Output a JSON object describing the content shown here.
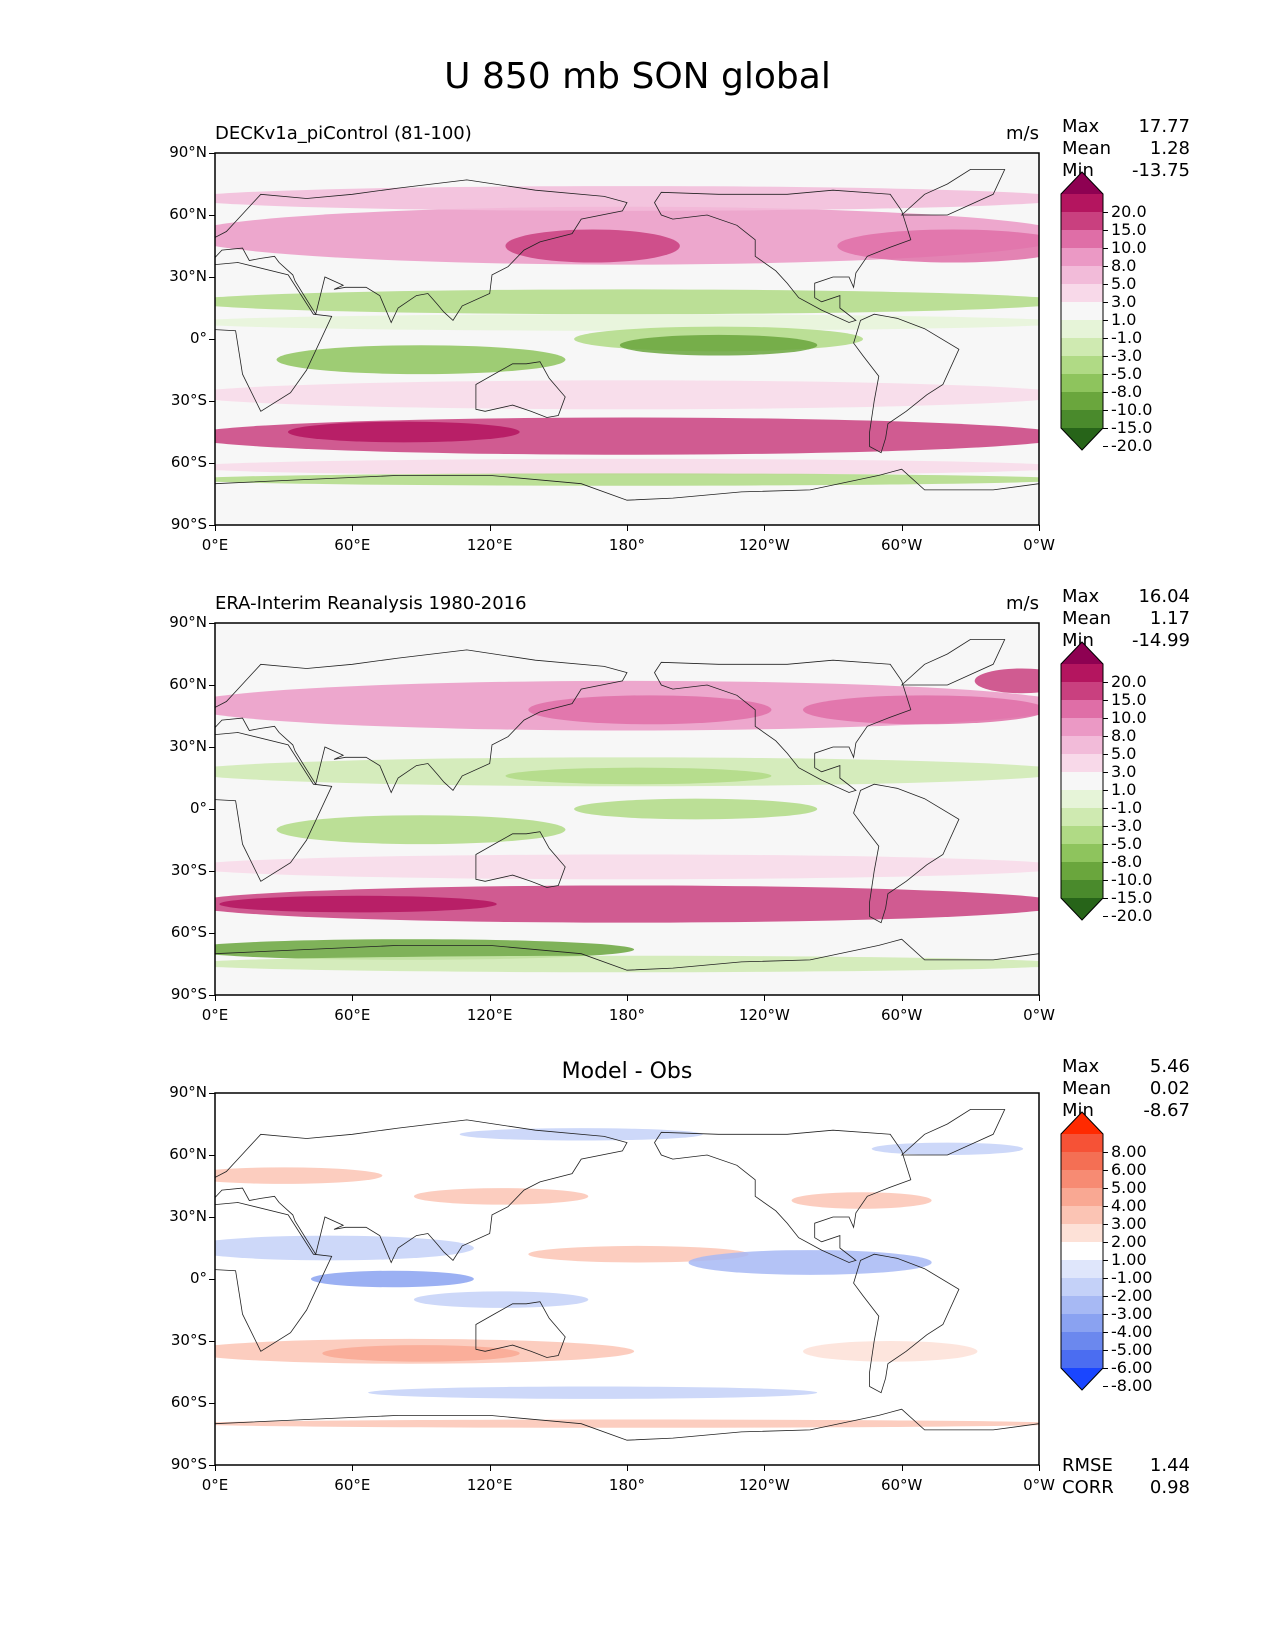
{
  "figure": {
    "title": "U 850 mb SON global"
  },
  "axes": {
    "lat_ticks": [
      "90°N",
      "60°N",
      "30°N",
      "0°",
      "30°S",
      "60°S",
      "90°S"
    ],
    "lon_ticks": [
      "0°E",
      "60°E",
      "120°E",
      "180°",
      "120°W",
      "60°W",
      "0°W"
    ]
  },
  "panels": [
    {
      "title": "DECKv1a_piControl (81-100)",
      "units": "m/s",
      "stats": {
        "max_label": "Max",
        "max": "17.77",
        "mean_label": "Mean",
        "mean": "1.28",
        "min_label": "Min",
        "min": "-13.75"
      },
      "colorbar": {
        "labels": [
          "20.0",
          "15.0",
          "10.0",
          "8.0",
          "5.0",
          "3.0",
          "1.0",
          "-1.0",
          "-3.0",
          "-5.0",
          "-8.0",
          "-10.0",
          "-15.0",
          "-20.0"
        ],
        "colors": [
          "#8e0152",
          "#b4155f",
          "#c9407f",
          "#df6ea7",
          "#eb99c5",
          "#f2bbd9",
          "#f8d9e9",
          "#f7f7f7",
          "#e6f4d8",
          "#cfeab1",
          "#b0da85",
          "#8ec45d",
          "#6aa63d",
          "#4a8a2c",
          "#276419"
        ]
      }
    },
    {
      "title": "ERA-Interim Reanalysis 1980-2016",
      "units": "m/s",
      "stats": {
        "max_label": "Max",
        "max": "16.04",
        "mean_label": "Mean",
        "mean": "1.17",
        "min_label": "Min",
        "min": "-14.99"
      },
      "colorbar": {
        "labels": [
          "20.0",
          "15.0",
          "10.0",
          "8.0",
          "5.0",
          "3.0",
          "1.0",
          "-1.0",
          "-3.0",
          "-5.0",
          "-8.0",
          "-10.0",
          "-15.0",
          "-20.0"
        ],
        "colors": [
          "#8e0152",
          "#b4155f",
          "#c9407f",
          "#df6ea7",
          "#eb99c5",
          "#f2bbd9",
          "#f8d9e9",
          "#f7f7f7",
          "#e6f4d8",
          "#cfeab1",
          "#b0da85",
          "#8ec45d",
          "#6aa63d",
          "#4a8a2c",
          "#276419"
        ]
      }
    },
    {
      "title": "Model - Obs",
      "units": "",
      "stats": {
        "max_label": "Max",
        "max": "5.46",
        "mean_label": "Mean",
        "mean": "0.02",
        "min_label": "Min",
        "min": "-8.67"
      },
      "colorbar": {
        "labels": [
          "8.00",
          "6.00",
          "5.00",
          "4.00",
          "3.00",
          "2.00",
          "1.00",
          "-1.00",
          "-2.00",
          "-3.00",
          "-4.00",
          "-5.00",
          "-6.00",
          "-8.00"
        ],
        "colors": [
          "#ff2a00",
          "#f65236",
          "#f46f54",
          "#f78b73",
          "#f9a893",
          "#fbc4b4",
          "#fde1d7",
          "#ffffff",
          "#dfe6fb",
          "#c4d1f8",
          "#a7b9f4",
          "#8aa2f1",
          "#6b88ee",
          "#4b6df1",
          "#1a46ff"
        ]
      },
      "extra_stats": {
        "rmse_label": "RMSE",
        "rmse": "1.44",
        "corr_label": "CORR",
        "corr": "0.98"
      }
    }
  ]
}
